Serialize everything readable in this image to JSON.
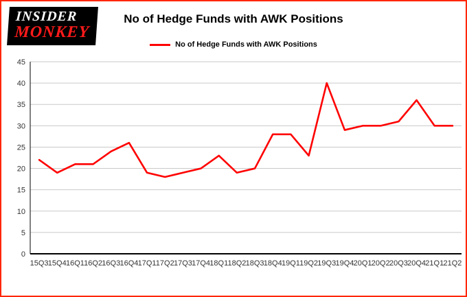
{
  "logo": {
    "line1": "INSIDER",
    "line2": "MONKEY"
  },
  "header": {
    "title": "No of Hedge Funds with AWK Positions"
  },
  "legend": {
    "label": "No of Hedge Funds with AWK Positions"
  },
  "colors": {
    "line": "#ff0000",
    "border": "#ff2600",
    "grid": "#c9c9c9",
    "axis": "#000000",
    "tick_text": "#333333"
  },
  "chart_data": {
    "type": "line",
    "title": "No of Hedge Funds with AWK Positions",
    "series_name": "No of Hedge Funds with AWK Positions",
    "categories": [
      "15Q3",
      "15Q4",
      "16Q1",
      "16Q2",
      "16Q3",
      "16Q4",
      "17Q1",
      "17Q2",
      "17Q3",
      "17Q4",
      "18Q1",
      "18Q2",
      "18Q3",
      "18Q4",
      "19Q1",
      "19Q2",
      "19Q3",
      "19Q4",
      "20Q1",
      "20Q2",
      "20Q3",
      "20Q4",
      "21Q1",
      "21Q2"
    ],
    "values": [
      22,
      19,
      21,
      21,
      24,
      26,
      19,
      18,
      19,
      20,
      23,
      19,
      20,
      28,
      28,
      23,
      40,
      29,
      30,
      30,
      31,
      36,
      30,
      30
    ],
    "xlabel": "",
    "ylabel": "",
    "ylim": [
      0,
      45
    ],
    "yticks": [
      0,
      5,
      10,
      15,
      20,
      25,
      30,
      35,
      40,
      45
    ],
    "grid": true,
    "legend_position": "top"
  }
}
